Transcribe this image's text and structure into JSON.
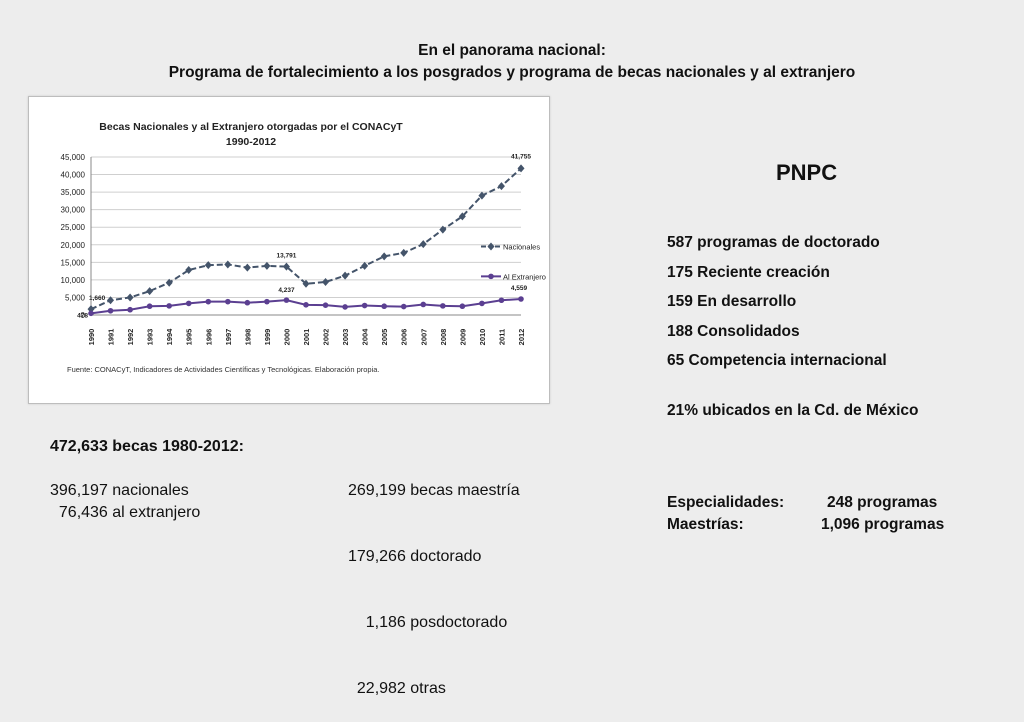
{
  "header": {
    "line1": "En el panorama nacional:",
    "line2": "Programa de fortalecimiento a los posgrados y programa de becas nacionales y al extranjero"
  },
  "chart_data": {
    "type": "line",
    "title": "Becas Nacionales y al Extranjero otorgadas por el CONACyT",
    "subtitle": "1990-2012",
    "source": "Fuente: CONACyT, Indicadores de Actividades Científicas y Tecnológicas. Elaboración propia.",
    "x": [
      "1990",
      "1991",
      "1992",
      "1993",
      "1994",
      "1995",
      "1996",
      "1997",
      "1998",
      "1999",
      "2000",
      "2001",
      "2002",
      "2003",
      "2004",
      "2005",
      "2006",
      "2007",
      "2008",
      "2009",
      "2010",
      "2011",
      "2012"
    ],
    "y_ticks": [
      "0",
      "5,000",
      "10,000",
      "15,000",
      "20,000",
      "25,000",
      "30,000",
      "35,000",
      "40,000",
      "45,000"
    ],
    "ylim": [
      0,
      45000
    ],
    "grid": true,
    "legend_position": "right",
    "series": [
      {
        "name": "Nacionales",
        "color": "#44546a",
        "style": "dashed",
        "values": [
          1660,
          4200,
          5000,
          6800,
          9200,
          12800,
          14200,
          14400,
          13500,
          14000,
          13791,
          8900,
          9400,
          11200,
          14000,
          16700,
          17700,
          20200,
          24300,
          28100,
          34000,
          36700,
          41755
        ]
      },
      {
        "name": "Al Extranjero",
        "color": "#5b3f91",
        "style": "solid",
        "values": [
          478,
          1200,
          1500,
          2500,
          2600,
          3300,
          3800,
          3800,
          3500,
          3800,
          4237,
          2900,
          2800,
          2300,
          2700,
          2500,
          2400,
          3000,
          2600,
          2500,
          3300,
          4200,
          4559
        ]
      }
    ],
    "data_labels": [
      {
        "series": 0,
        "index": 0,
        "text": "1,660"
      },
      {
        "series": 0,
        "index": 10,
        "text": "13,791"
      },
      {
        "series": 0,
        "index": 22,
        "text": "41,755"
      },
      {
        "series": 1,
        "index": 0,
        "text": "478"
      },
      {
        "series": 1,
        "index": 10,
        "text": "4,237"
      },
      {
        "series": 1,
        "index": 22,
        "text": "4,559"
      }
    ]
  },
  "bottom": {
    "total": "472,633 becas 1980-2012:",
    "nacionales": "396,197 nacionales",
    "extranjero": "  76,436 al extranjero",
    "maestria": "269,199 becas maestría",
    "doctorado": "179,266 doctorado",
    "posdoctorado": "    1,186 posdoctorado",
    "otras": "  22,982 otras"
  },
  "pnpc": {
    "title": "PNPC",
    "items": [
      "587 programas de doctorado",
      "175 Reciente creación",
      "159 En desarrollo",
      "188 Consolidados",
      "65 Competencia internacional"
    ],
    "location": "21% ubicados en la Cd. de México",
    "especialidades_label": "Especialidades:",
    "especialidades_value": "248 programas",
    "maestrias_label": "Maestrías:",
    "maestrias_value": "1,096 programas"
  }
}
